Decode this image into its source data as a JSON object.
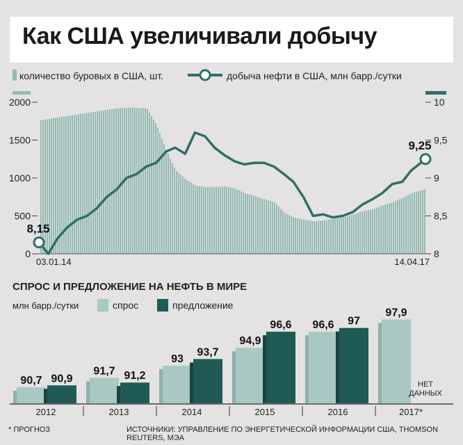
{
  "title": "Как США увеличивали добычу",
  "legend": {
    "rigs_label": "количество буровых в США, шт.",
    "oil_label": "добыча нефти в США, млн барр./сутки"
  },
  "colors": {
    "rigs_fill": "#93bab2",
    "oil_line": "#2f6f66",
    "demand": "#a9c8c3",
    "supply": "#1f5a54",
    "background": "#e4e2e3"
  },
  "chart_data": [
    {
      "type": "area",
      "title": "",
      "xlabel": "",
      "ylabel_left": "",
      "ylabel_right": "",
      "x_labels": [
        "03.01.14",
        "14.04.17"
      ],
      "y_left_ticks": [
        "0",
        "500",
        "1000",
        "1500",
        "2000"
      ],
      "y_right_ticks": [
        "8",
        "8,5",
        "9",
        "9,5",
        "10"
      ],
      "ylim_left": [
        0,
        2000
      ],
      "ylim_right": [
        8,
        10
      ],
      "series": [
        {
          "name": "количество буровых в США, шт.",
          "type": "area",
          "axis": "left",
          "x": [
            "2014-01-03",
            "2014-03-01",
            "2014-06-01",
            "2014-09-01",
            "2014-10-10",
            "2014-12-01",
            "2015-01-01",
            "2015-02-01",
            "2015-03-01",
            "2015-04-01",
            "2015-05-01",
            "2015-06-01",
            "2015-07-01",
            "2015-08-01",
            "2015-09-01",
            "2015-10-01",
            "2015-11-01",
            "2015-12-01",
            "2016-01-01",
            "2016-02-01",
            "2016-03-01",
            "2016-04-01",
            "2016-05-01",
            "2016-06-01",
            "2016-07-01",
            "2016-08-01",
            "2016-09-01",
            "2016-10-01",
            "2016-11-01",
            "2016-12-01",
            "2017-01-01",
            "2017-02-01",
            "2017-03-01",
            "2017-04-14"
          ],
          "values": [
            1760,
            1800,
            1860,
            1920,
            1930,
            1920,
            1700,
            1350,
            1100,
            980,
            900,
            880,
            880,
            890,
            860,
            800,
            760,
            720,
            680,
            540,
            480,
            450,
            430,
            440,
            460,
            480,
            520,
            560,
            590,
            640,
            680,
            740,
            800,
            860
          ]
        },
        {
          "name": "добыча нефти в США, млн барр./сутки",
          "type": "line",
          "axis": "right",
          "x": [
            "2014-01-03",
            "2014-02-01",
            "2014-03-01",
            "2014-04-01",
            "2014-05-01",
            "2014-06-01",
            "2014-07-01",
            "2014-08-01",
            "2014-09-01",
            "2014-10-01",
            "2014-11-01",
            "2014-12-01",
            "2015-01-01",
            "2015-02-01",
            "2015-03-01",
            "2015-04-01",
            "2015-05-01",
            "2015-06-01",
            "2015-07-01",
            "2015-08-01",
            "2015-09-01",
            "2015-10-01",
            "2015-11-01",
            "2015-12-01",
            "2016-01-01",
            "2016-02-01",
            "2016-03-01",
            "2016-04-01",
            "2016-05-01",
            "2016-06-01",
            "2016-07-01",
            "2016-08-01",
            "2016-09-01",
            "2016-10-01",
            "2016-11-01",
            "2016-12-01",
            "2017-01-01",
            "2017-02-01",
            "2017-03-01",
            "2017-04-14"
          ],
          "values": [
            8.15,
            8.0,
            8.2,
            8.35,
            8.45,
            8.5,
            8.6,
            8.75,
            8.85,
            9.0,
            9.05,
            9.15,
            9.2,
            9.35,
            9.4,
            9.32,
            9.6,
            9.55,
            9.4,
            9.3,
            9.22,
            9.18,
            9.2,
            9.2,
            9.15,
            9.05,
            8.95,
            8.75,
            8.5,
            8.52,
            8.48,
            8.5,
            8.55,
            8.65,
            8.72,
            8.8,
            8.92,
            8.95,
            9.1,
            9.25
          ]
        }
      ],
      "annotations": [
        {
          "label": "8,15",
          "series": "добыча нефти в США, млн барр./сутки",
          "x": "2014-01-03",
          "value": 8.15
        },
        {
          "label": "9,25",
          "series": "добыча нефти в США, млн барр./сутки",
          "x": "2017-04-14",
          "value": 9.25
        }
      ],
      "grid": false
    },
    {
      "type": "bar",
      "title": "СПРОС И ПРЕДЛОЖЕНИЕ НА НЕФТЬ В МИРЕ",
      "ylabel": "млн барр./сутки",
      "categories": [
        "2012",
        "2013",
        "2014",
        "2015",
        "2016",
        "2017*"
      ],
      "series": [
        {
          "name": "спрос",
          "values": [
            90.7,
            91.7,
            93,
            94.9,
            96.6,
            97.9
          ],
          "labels": [
            "90,7",
            "91,7",
            "93",
            "94,9",
            "96,6",
            "97,9"
          ]
        },
        {
          "name": "предложение",
          "values": [
            90.9,
            91.2,
            93.7,
            96.6,
            97,
            null
          ],
          "labels": [
            "90,9",
            "91,2",
            "93,7",
            "96,6",
            "97",
            ""
          ]
        }
      ],
      "ylim": [
        89,
        98.6
      ],
      "no_data_label": [
        "НЕТ",
        "ДАННЫХ"
      ],
      "grid": false
    }
  ],
  "footer": {
    "footnote": "* ПРОГНОЗ",
    "sources": "ИСТОЧНИКИ: УПРАВЛЕНИЕ ПО ЭНЕРГЕТИЧЕСКОЙ ИНФОРМАЦИИ США, THOMSON REUTERS, МЭА"
  }
}
